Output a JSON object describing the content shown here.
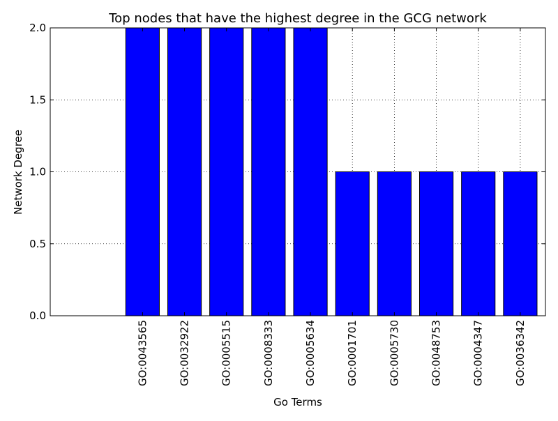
{
  "chart_data": {
    "type": "bar",
    "title": "Top nodes that have the highest degree in the GCG network",
    "xlabel": "Go Terms",
    "ylabel": "Network Degree",
    "categories": [
      "GO:0043565",
      "GO:0032922",
      "GO:0005515",
      "GO:0008333",
      "GO:0005634",
      "GO:0001701",
      "GO:0005730",
      "GO:0048753",
      "GO:0004347",
      "GO:0036342"
    ],
    "values": [
      2,
      2,
      2,
      2,
      2,
      1,
      1,
      1,
      1,
      1
    ],
    "ylim": [
      0,
      2
    ],
    "yticks": [
      "0.0",
      "0.5",
      "1.0",
      "1.5",
      "2.0"
    ],
    "bar_color": "#0000ff",
    "grid": true,
    "grid_style": "dotted"
  }
}
